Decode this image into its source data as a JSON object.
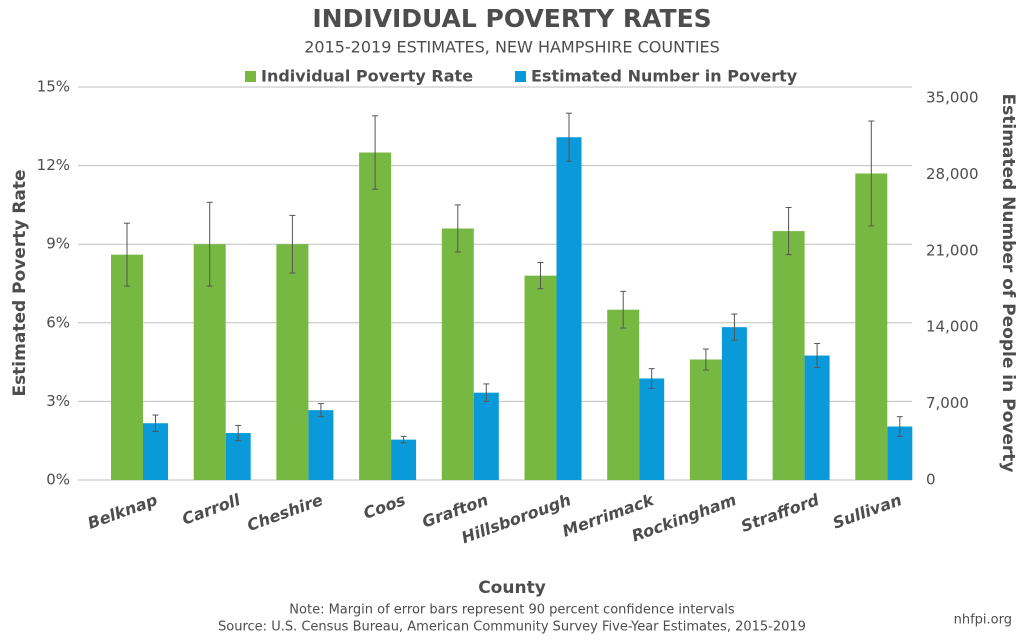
{
  "chart_data": {
    "type": "bar",
    "title": "INDIVIDUAL POVERTY RATES",
    "subtitle": "2015-2019 ESTIMATES, NEW HAMPSHIRE COUNTIES",
    "x_label": "County",
    "y_label": "Estimated Poverty Rate",
    "y2_label": "Estimated Number of People in Poverty",
    "note": "Note: Margin of error bars represent 90 percent confidence intervals",
    "source": "Source: U.S. Census Bureau, American Community Survey Five-Year Estimates, 2015-2019",
    "credit": "nhfpi.org",
    "categories": [
      "Belknap",
      "Carroll",
      "Cheshire",
      "Coos",
      "Grafton",
      "Hillsborough",
      "Merrimack",
      "Rockingham",
      "Strafford",
      "Sullivan"
    ],
    "series": [
      {
        "name": "Individual Poverty Rate",
        "color": "#77b843",
        "axis": "y",
        "values": [
          8.6,
          9.0,
          9.0,
          12.5,
          9.6,
          7.8,
          6.5,
          4.6,
          9.5,
          11.7
        ],
        "errors": [
          1.2,
          1.6,
          1.1,
          1.4,
          0.9,
          0.5,
          0.7,
          0.4,
          0.9,
          2.0
        ]
      },
      {
        "name": "Estimated Number in Poverty",
        "color": "#0a9ad9",
        "axis": "y2",
        "values": [
          5200,
          4300,
          6400,
          3700,
          8000,
          31400,
          9300,
          14000,
          11400,
          4900
        ],
        "errors": [
          750,
          700,
          600,
          300,
          800,
          2200,
          900,
          1200,
          1100,
          900
        ]
      }
    ],
    "ylim": [
      0,
      15
    ],
    "yticks": [
      {
        "value": 0,
        "label": "0%"
      },
      {
        "value": 3,
        "label": "3%"
      },
      {
        "value": 6,
        "label": "6%"
      },
      {
        "value": 9,
        "label": "9%"
      },
      {
        "value": 12,
        "label": "12%"
      },
      {
        "value": 15,
        "label": "15%"
      }
    ],
    "y2lim": [
      0,
      36000
    ],
    "y2ticks": [
      0,
      {
        "value": 7000,
        "label": "7,000"
      },
      {
        "value": 14000,
        "label": "14,000"
      },
      {
        "value": 21000,
        "label": "21,000"
      },
      {
        "value": 28000,
        "label": "28,000"
      },
      {
        "value": 35000,
        "label": "35,000"
      }
    ],
    "grid": true,
    "legend": "top"
  }
}
